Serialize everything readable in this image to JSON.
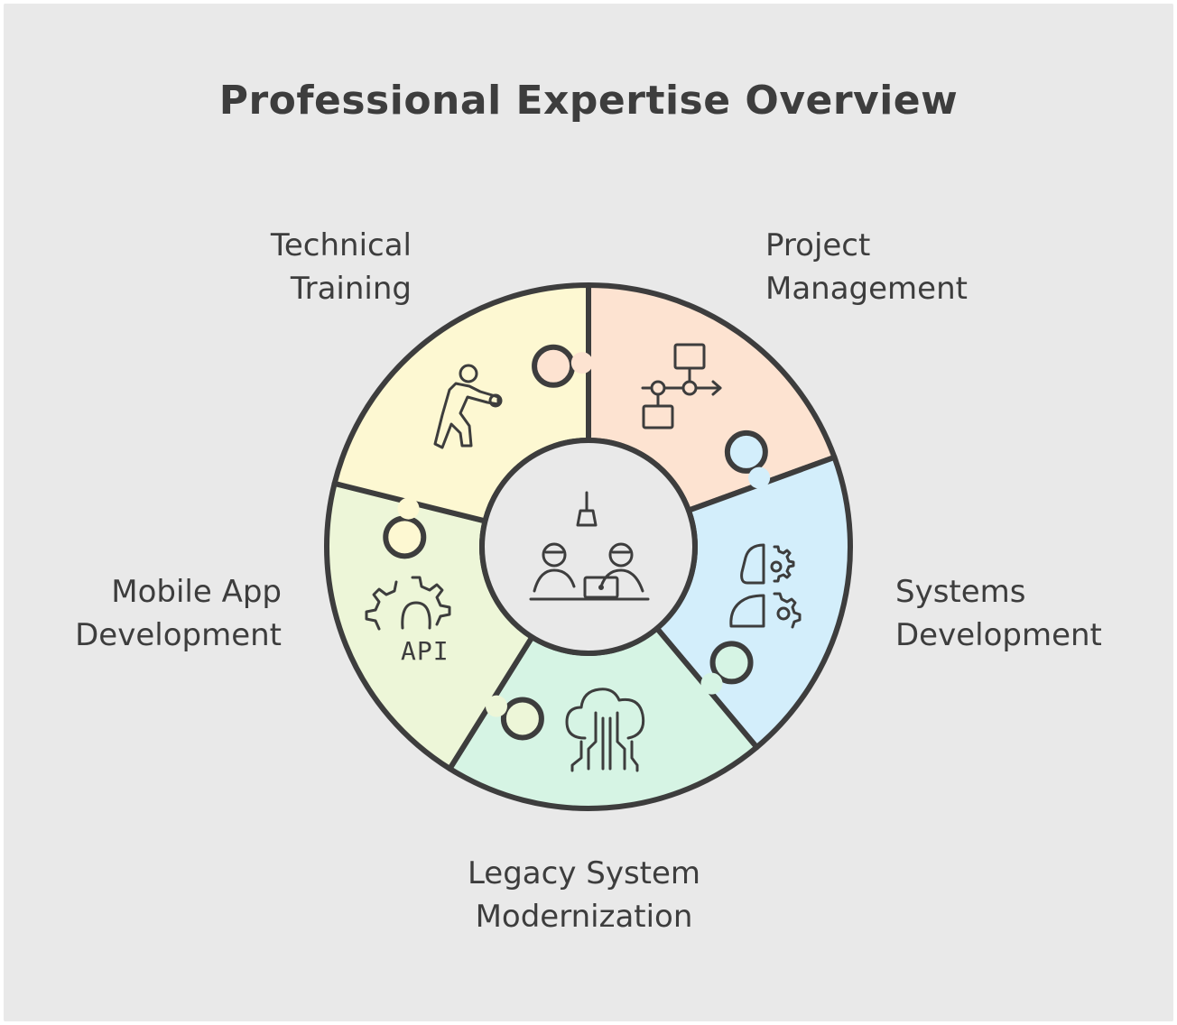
{
  "title": "Professional Expertise Overview",
  "segments": [
    {
      "id": "technical-training",
      "lines": [
        "Technical",
        "Training"
      ],
      "color": "#fde3d1",
      "icon": "person-training-icon"
    },
    {
      "id": "project-management",
      "lines": [
        "Project",
        "Management"
      ],
      "color": "#d3eefb",
      "icon": "flowchart-icon"
    },
    {
      "id": "systems-development",
      "lines": [
        "Systems",
        "Development"
      ],
      "color": "#d6f4e4",
      "icon": "head-gears-icon"
    },
    {
      "id": "legacy-system-modernization",
      "lines": [
        "Legacy System",
        "Modernization"
      ],
      "color": "#edf6d8",
      "icon": "cloud-circuit-icon"
    },
    {
      "id": "mobile-app-development",
      "lines": [
        "Mobile App",
        "Development"
      ],
      "color": "#fdf8d2",
      "icon": "api-gear-icon"
    }
  ],
  "center": {
    "icon": "team-meeting-icon"
  },
  "colors": {
    "background": "#e9e9e9",
    "stroke": "#3d3d3d",
    "center_fill": "#e9e9e9"
  },
  "icon_labels": {
    "api": "API"
  }
}
